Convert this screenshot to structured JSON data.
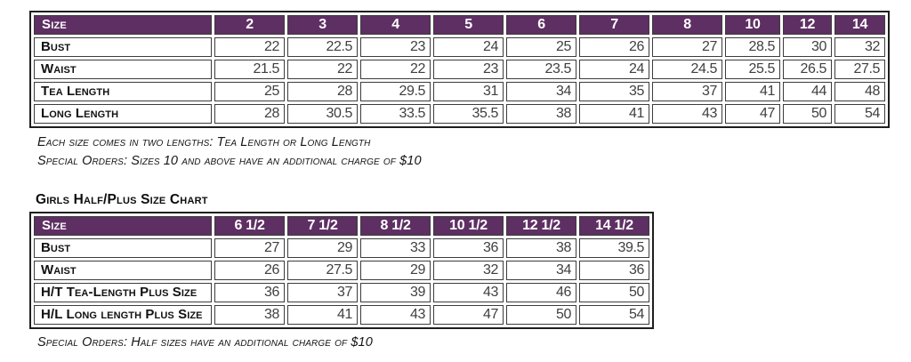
{
  "colors": {
    "header_bg": "#5e2f63",
    "header_text": "#ffffff",
    "value_text": "#3f3f3f",
    "label_text": "#111111"
  },
  "size_chart": {
    "columns": [
      "Size",
      "2",
      "3",
      "4",
      "5",
      "6",
      "7",
      "8",
      "10",
      "12",
      "14"
    ],
    "rows": [
      {
        "label": "Bust",
        "values": [
          "22",
          "22.5",
          "23",
          "24",
          "25",
          "26",
          "27",
          "28.5",
          "30",
          "32"
        ]
      },
      {
        "label": "Waist",
        "values": [
          "21.5",
          "22",
          "22",
          "23",
          "23.5",
          "24",
          "24.5",
          "25.5",
          "26.5",
          "27.5"
        ]
      },
      {
        "label": "Tea Length",
        "values": [
          "25",
          "28",
          "29.5",
          "31",
          "34",
          "35",
          "37",
          "41",
          "44",
          "48"
        ]
      },
      {
        "label": "Long Length",
        "values": [
          "28",
          "30.5",
          "33.5",
          "35.5",
          "38",
          "41",
          "43",
          "47",
          "50",
          "54"
        ]
      }
    ],
    "notes": [
      "Each size comes in two lengths: Tea Length or Long Length",
      "Special Orders: Sizes 10 and above have an additional charge of $10"
    ]
  },
  "half_plus_chart": {
    "title": "Girls Half/Plus Size Chart",
    "columns": [
      "Size",
      "6 1/2",
      "7 1/2",
      "8 1/2",
      "10 1/2",
      "12 1/2",
      "14 1/2"
    ],
    "rows": [
      {
        "label": "Bust",
        "values": [
          "27",
          "29",
          "33",
          "36",
          "38",
          "39.5"
        ]
      },
      {
        "label": "Waist",
        "values": [
          "26",
          "27.5",
          "29",
          "32",
          "34",
          "36"
        ]
      },
      {
        "label": "H/T Tea-Length Plus Size",
        "values": [
          "36",
          "37",
          "39",
          "43",
          "46",
          "50"
        ]
      },
      {
        "label": "H/L Long length Plus Size",
        "values": [
          "38",
          "41",
          "43",
          "47",
          "50",
          "54"
        ]
      }
    ],
    "note": "Special Orders: Half sizes have an additional charge of $10"
  }
}
